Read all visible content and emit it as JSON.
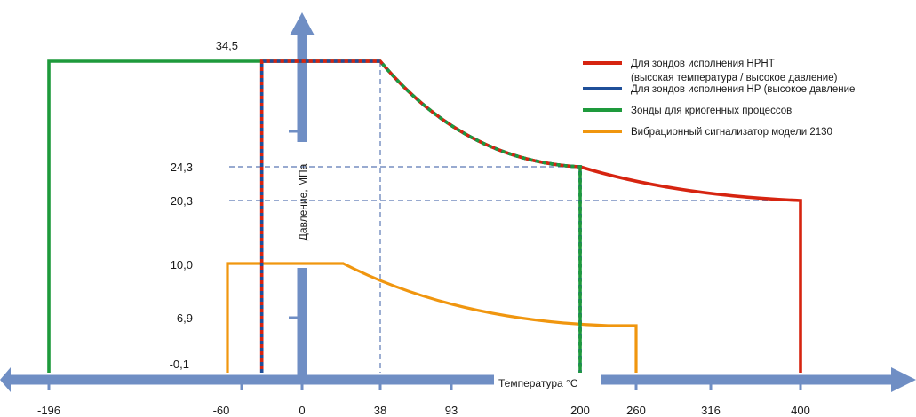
{
  "chart_data": {
    "type": "line",
    "xlabel": "Температура °C",
    "ylabel": "Давление, МПа",
    "x_ticks": [
      -196,
      -60,
      0,
      38,
      93,
      200,
      260,
      316,
      400
    ],
    "y_ticks": [
      "34,5",
      "24,3",
      "20,3",
      "10,0",
      "6,9",
      "-0,1"
    ],
    "grid": false,
    "legend_position": "top-right",
    "legend": [
      {
        "label": "Для зондов исполнения НРНТ",
        "label2": "(высокая температура / высокое давление)",
        "color": "#d62410"
      },
      {
        "label": "Для зондов исполнения НР (высокое давление",
        "label2": "",
        "color": "#1f4f99"
      },
      {
        "label": "Зонды для криогенных процессов",
        "label2": "",
        "color": "#1e9a3c"
      },
      {
        "label": "Вибрационный сигнализатор модели 2130",
        "label2": "",
        "color": "#f0960f"
      }
    ],
    "series": [
      {
        "name": "Для зондов исполнения НРНТ",
        "color": "#d62410",
        "points": [
          [
            -40,
            -0.1
          ],
          [
            -40,
            34.5
          ],
          [
            38,
            34.5
          ],
          [
            200,
            24.3
          ],
          [
            400,
            20.3
          ],
          [
            400,
            -0.1
          ]
        ]
      },
      {
        "name": "Для зондов исполнения НР (высокое давление",
        "color": "#1f4f99",
        "points": [
          [
            -40,
            -0.1
          ],
          [
            -40,
            34.5
          ],
          [
            38,
            34.5
          ],
          [
            200,
            24.3
          ],
          [
            200,
            -0.1
          ]
        ]
      },
      {
        "name": "Зонды для криогенных процессов",
        "color": "#1e9a3c",
        "points": [
          [
            -196,
            -0.1
          ],
          [
            -196,
            34.5
          ],
          [
            38,
            34.5
          ],
          [
            200,
            24.3
          ],
          [
            200,
            -0.1
          ]
        ]
      },
      {
        "name": "Вибрационный сигнализатор модели 2130",
        "color": "#f0960f",
        "points": [
          [
            -70,
            -0.1
          ],
          [
            -70,
            10.0
          ],
          [
            20,
            10.0
          ],
          [
            230,
            6.9
          ],
          [
            260,
            6.9
          ],
          [
            260,
            -0.1
          ]
        ]
      }
    ],
    "reference_lines": [
      {
        "type": "vertical",
        "x": 38,
        "from_y": 34.5
      },
      {
        "type": "horizontal",
        "y": 24.3,
        "to_x": 200
      },
      {
        "type": "horizontal",
        "y": 20.3,
        "to_x": 400
      }
    ]
  },
  "colors": {
    "axis": "#6f8ec4",
    "reference": "#5a78b5"
  }
}
